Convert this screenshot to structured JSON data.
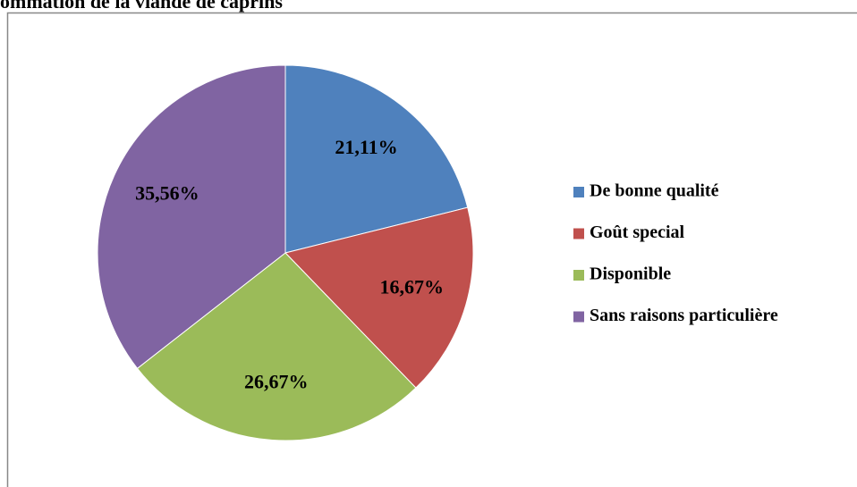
{
  "chart_data": {
    "type": "pie",
    "title": "ommation de la viande de caprins",
    "categories": [
      "De bonne qualité",
      "Goût special",
      "Disponible",
      "Sans raisons particulière"
    ],
    "values": [
      21.11,
      16.67,
      26.67,
      35.56
    ],
    "value_labels": [
      "21,11%",
      "16,67%",
      "26,67%",
      "35,56%"
    ],
    "colors": [
      "#4f81bd",
      "#c0504d",
      "#9bbb59",
      "#8064a2"
    ],
    "legend": "right"
  }
}
